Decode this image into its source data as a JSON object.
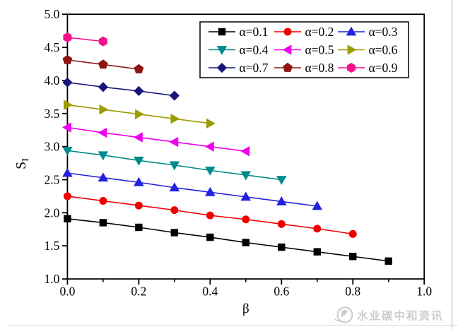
{
  "chart_data": {
    "type": "line",
    "title": "",
    "xlabel": "β",
    "ylabel": "S",
    "ylabel_subscript": "I",
    "xlim": [
      0.0,
      1.0
    ],
    "ylim": [
      1.0,
      5.0
    ],
    "grid": false,
    "x_major_ticks": {
      "values": [
        0.0,
        0.2,
        0.4,
        0.6,
        0.8,
        1.0
      ],
      "labels": [
        "0.0",
        "0.2",
        "0.4",
        "0.6",
        "0.8",
        "1.0"
      ]
    },
    "x_minor_ticks": [
      0.1,
      0.3,
      0.5,
      0.7,
      0.9
    ],
    "y_major_ticks": {
      "values": [
        1.0,
        1.5,
        2.0,
        2.5,
        3.0,
        3.5,
        4.0,
        4.5,
        5.0
      ],
      "labels": [
        "1.0",
        "1.5",
        "2.0",
        "2.5",
        "3.0",
        "3.5",
        "4.0",
        "4.5",
        "5.0"
      ]
    },
    "legend": {
      "position": "top-right-inside",
      "border": true,
      "rows": 3,
      "columns": 3
    },
    "series": [
      {
        "name": "α=0.1",
        "color": "#000000",
        "marker": "square",
        "x": [
          0.0,
          0.1,
          0.2,
          0.3,
          0.4,
          0.5,
          0.6,
          0.7,
          0.8,
          0.9
        ],
        "y": [
          1.91,
          1.85,
          1.78,
          1.7,
          1.63,
          1.55,
          1.48,
          1.41,
          1.34,
          1.27
        ]
      },
      {
        "name": "α=0.2",
        "color": "#f20000",
        "marker": "circle",
        "x": [
          0.0,
          0.1,
          0.2,
          0.3,
          0.4,
          0.5,
          0.6,
          0.7,
          0.8
        ],
        "y": [
          2.25,
          2.18,
          2.11,
          2.04,
          1.96,
          1.9,
          1.83,
          1.76,
          1.68
        ]
      },
      {
        "name": "α=0.3",
        "color": "#2121de",
        "marker": "triangle-up",
        "x": [
          0.0,
          0.1,
          0.2,
          0.3,
          0.4,
          0.5,
          0.6,
          0.7
        ],
        "y": [
          2.6,
          2.53,
          2.46,
          2.38,
          2.31,
          2.24,
          2.17,
          2.1
        ]
      },
      {
        "name": "α=0.4",
        "color": "#008b8b",
        "marker": "triangle-down",
        "x": [
          0.0,
          0.1,
          0.2,
          0.3,
          0.4,
          0.5,
          0.6
        ],
        "y": [
          2.94,
          2.87,
          2.79,
          2.72,
          2.64,
          2.57,
          2.5
        ]
      },
      {
        "name": "α=0.5",
        "color": "#ee00ee",
        "marker": "triangle-left",
        "x": [
          0.0,
          0.1,
          0.2,
          0.3,
          0.4,
          0.5
        ],
        "y": [
          3.29,
          3.21,
          3.14,
          3.07,
          3.0,
          2.93
        ]
      },
      {
        "name": "α=0.6",
        "color": "#9c9c00",
        "marker": "triangle-right",
        "x": [
          0.0,
          0.1,
          0.2,
          0.3,
          0.4
        ],
        "y": [
          3.63,
          3.56,
          3.49,
          3.42,
          3.35
        ]
      },
      {
        "name": "α=0.7",
        "color": "#16167d",
        "marker": "diamond",
        "x": [
          0.0,
          0.1,
          0.2,
          0.3
        ],
        "y": [
          3.97,
          3.9,
          3.84,
          3.77
        ]
      },
      {
        "name": "α=0.8",
        "color": "#8f1414",
        "marker": "pentagon",
        "x": [
          0.0,
          0.1,
          0.2
        ],
        "y": [
          4.31,
          4.24,
          4.17
        ]
      },
      {
        "name": "α=0.9",
        "color": "#f3118d",
        "marker": "hexagon",
        "x": [
          0.0,
          0.1
        ],
        "y": [
          4.65,
          4.59
        ]
      }
    ]
  },
  "watermark": {
    "text": "水业碳中和资讯",
    "icon": "droplet-logo-icon",
    "color": "#cdcdcd"
  }
}
